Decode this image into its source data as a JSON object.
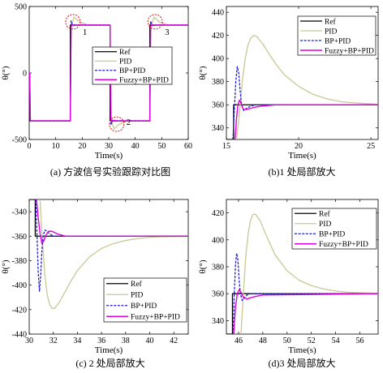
{
  "colors": {
    "ref": "#000000",
    "pid": "#c8c896",
    "bp": "#1f1fd0",
    "fuzzy": "#e000e0",
    "marker": "#e01010"
  },
  "legend_labels": [
    "Ref",
    "PID",
    "BP+PID",
    "Fuzzy+BP+PID"
  ],
  "chart_data": [
    {
      "id": "a",
      "type": "line",
      "caption": "(a) 方波信号实验跟踪对比图",
      "xlabel": "Time(s)",
      "ylabel": "θ(°)",
      "xlim": [
        0,
        60
      ],
      "ylim": [
        -500,
        500
      ],
      "xticks": [
        0,
        10,
        20,
        30,
        40,
        50,
        60
      ],
      "yticks": [
        -500,
        0,
        500
      ],
      "legend_position": "right-middle",
      "annotations": [
        {
          "label": "1",
          "x": 16.5,
          "y": 385
        },
        {
          "label": "2",
          "x": 33,
          "y": -385
        },
        {
          "label": "3",
          "x": 47.5,
          "y": 385
        }
      ],
      "series": [
        {
          "name": "Ref",
          "x": [
            0,
            0.2,
            0.2,
            15.5,
            15.5,
            30.5,
            30.5,
            45.5,
            45.5,
            60
          ],
          "y": [
            0,
            0,
            -360,
            -360,
            360,
            360,
            -360,
            -360,
            360,
            360
          ]
        },
        {
          "name": "PID",
          "x": [
            0,
            0.2,
            0.5,
            15.5,
            15.9,
            16.9,
            19,
            22,
            30.5,
            30.9,
            32,
            34,
            37,
            45.5,
            45.9,
            47.1,
            49,
            52,
            60
          ],
          "y": [
            0,
            0,
            -360,
            -360,
            350,
            420,
            385,
            362,
            360,
            -350,
            -420,
            -385,
            -362,
            -360,
            350,
            420,
            385,
            362,
            360
          ]
        },
        {
          "name": "BP+PID",
          "x": [
            0,
            0.2,
            0.4,
            15.5,
            15.8,
            16.3,
            17,
            30.5,
            30.8,
            31.3,
            32,
            45.5,
            45.8,
            46.3,
            47,
            60
          ],
          "y": [
            0,
            0,
            -360,
            -360,
            392,
            356,
            360,
            360,
            -392,
            -356,
            -360,
            -360,
            390,
            357,
            360,
            360
          ]
        },
        {
          "name": "Fuzzy+BP+PID",
          "x": [
            0,
            0.2,
            0.4,
            15.5,
            15.8,
            16.3,
            16.8,
            18,
            30.5,
            30.8,
            31.3,
            31.8,
            33,
            45.5,
            45.8,
            46.3,
            46.8,
            48,
            60
          ],
          "y": [
            0,
            0,
            -360,
            -360,
            350,
            365,
            356,
            360,
            360,
            -350,
            -365,
            -356,
            -360,
            -360,
            350,
            365,
            356,
            360,
            360
          ]
        }
      ]
    },
    {
      "id": "b",
      "type": "line",
      "caption": "(b)1 处局部放大",
      "xlabel": "Time(s)",
      "ylabel": "θ(°)",
      "xlim": [
        15,
        25.5
      ],
      "ylim": [
        330,
        445
      ],
      "xticks": [
        15,
        20,
        25
      ],
      "yticks": [
        340,
        360,
        380,
        400,
        420,
        440
      ],
      "legend_position": "top-right",
      "series": [
        {
          "name": "Ref",
          "x": [
            15,
            15.5,
            15.5,
            25.5
          ],
          "y": [
            330,
            330,
            360,
            360
          ]
        },
        {
          "name": "PID",
          "x": [
            15.7,
            15.9,
            16.1,
            16.3,
            16.5,
            16.7,
            16.9,
            17.1,
            17.5,
            18,
            18.5,
            19,
            20,
            21,
            22,
            23,
            24,
            25.5
          ],
          "y": [
            330,
            352,
            380,
            400,
            412,
            418,
            420,
            419,
            413,
            403,
            394,
            386,
            376,
            369,
            365,
            362.5,
            361.5,
            360.5
          ]
        },
        {
          "name": "BP+PID",
          "x": [
            15.45,
            15.55,
            15.65,
            15.75,
            15.85,
            15.95,
            16.05,
            16.2,
            16.4,
            16.7,
            17,
            18,
            25.5
          ],
          "y": [
            330,
            355,
            380,
            393,
            388,
            372,
            360,
            355,
            357,
            359,
            360,
            360,
            360
          ]
        },
        {
          "name": "Fuzzy+BP+PID",
          "x": [
            15.6,
            15.7,
            15.8,
            15.9,
            16.0,
            16.1,
            16.2,
            16.4,
            16.7,
            17,
            17.5,
            18.5,
            25.5
          ],
          "y": [
            330,
            348,
            360,
            364,
            362,
            358,
            356,
            356,
            357,
            358,
            359,
            360,
            360
          ]
        }
      ]
    },
    {
      "id": "c",
      "type": "line",
      "caption": "(c) 2 处局部放大",
      "xlabel": "Time(s)",
      "ylabel": "θ(°)",
      "xlim": [
        30,
        43.2
      ],
      "ylim": [
        -440,
        -330
      ],
      "xticks": [
        30,
        32,
        34,
        36,
        38,
        40,
        42
      ],
      "yticks": [
        -340,
        -360,
        -380,
        -400,
        -420,
        -440
      ],
      "legend_position": "bottom-right",
      "series": [
        {
          "name": "Ref",
          "x": [
            30,
            30.5,
            30.5,
            43.2
          ],
          "y": [
            -330,
            -330,
            -360,
            -360
          ]
        },
        {
          "name": "PID",
          "x": [
            30.9,
            31.1,
            31.3,
            31.5,
            31.7,
            31.9,
            32.1,
            32.5,
            33,
            33.5,
            34,
            35,
            36,
            37,
            38,
            39,
            40,
            41,
            43.2
          ],
          "y": [
            -330,
            -365,
            -392,
            -408,
            -416,
            -419,
            -419,
            -414,
            -405,
            -396,
            -388,
            -377,
            -370,
            -366,
            -363.5,
            -362,
            -361,
            -360.5,
            -360.2
          ]
        },
        {
          "name": "BP+PID",
          "x": [
            30.55,
            30.65,
            30.75,
            30.85,
            30.95,
            31.05,
            31.15,
            31.3,
            31.5,
            31.7,
            32,
            33,
            43.2
          ],
          "y": [
            -330,
            -360,
            -390,
            -405,
            -392,
            -372,
            -360,
            -355,
            -356,
            -358,
            -360,
            -360,
            -360
          ]
        },
        {
          "name": "Fuzzy+BP+PID",
          "x": [
            30.6,
            30.75,
            30.9,
            31.05,
            31.2,
            31.4,
            31.6,
            31.9,
            32.3,
            33,
            43.2
          ],
          "y": [
            -330,
            -345,
            -358,
            -366,
            -364,
            -359,
            -356,
            -356,
            -358,
            -360,
            -360
          ]
        }
      ]
    },
    {
      "id": "d",
      "type": "line",
      "caption": "(d)3 处局部放大",
      "xlabel": "Time(s)",
      "ylabel": "θ(°)",
      "xlim": [
        45,
        57.5
      ],
      "ylim": [
        330,
        430
      ],
      "xticks": [
        46,
        48,
        50,
        52,
        54,
        56
      ],
      "yticks": [
        340,
        360,
        380,
        400,
        420
      ],
      "legend_position": "top-right",
      "series": [
        {
          "name": "Ref",
          "x": [
            45,
            45.5,
            45.5,
            57.5
          ],
          "y": [
            330,
            330,
            360,
            360
          ]
        },
        {
          "name": "PID",
          "x": [
            46.2,
            46.4,
            46.6,
            46.8,
            47.0,
            47.2,
            47.4,
            47.8,
            48.2,
            48.6,
            49,
            50,
            51,
            52,
            53,
            54,
            55,
            57.5
          ],
          "y": [
            330,
            360,
            388,
            405,
            415,
            419,
            419,
            414,
            405,
            397,
            389,
            377,
            370,
            366,
            363.5,
            362,
            361,
            360.3
          ]
        },
        {
          "name": "BP+PID",
          "x": [
            45.55,
            45.65,
            45.75,
            45.85,
            45.95,
            46.05,
            46.15,
            46.3,
            46.5,
            46.7,
            47,
            48,
            57.5
          ],
          "y": [
            330,
            360,
            382,
            390,
            385,
            370,
            360,
            355,
            357,
            359,
            360,
            360,
            360
          ]
        },
        {
          "name": "Fuzzy+BP+PID",
          "x": [
            45.6,
            45.75,
            45.9,
            46.05,
            46.2,
            46.35,
            46.5,
            46.7,
            47,
            47.4,
            48,
            57.5
          ],
          "y": [
            330,
            350,
            360,
            363,
            361,
            358,
            357,
            356,
            357,
            358,
            359,
            360
          ]
        }
      ]
    }
  ]
}
